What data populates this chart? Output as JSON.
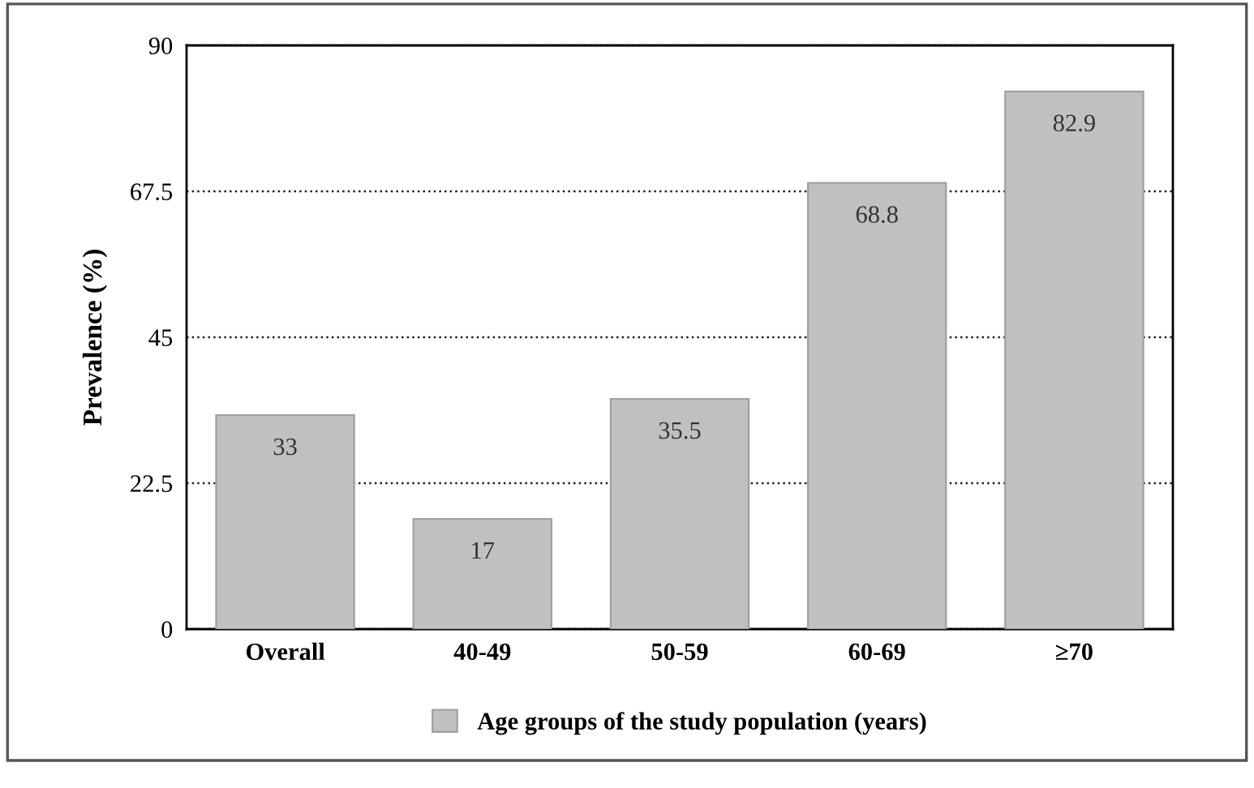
{
  "chart_data": {
    "type": "bar",
    "ylabel": "Prevalence (%)",
    "categories": [
      "Overall",
      "40-49",
      "50-59",
      "60-69",
      "≥70"
    ],
    "series": [
      {
        "name": "Age groups of the study population (years)",
        "color": "#c0c0c0",
        "values": [
          33,
          17,
          35.5,
          68.8,
          82.9
        ]
      }
    ],
    "ylim": [
      0,
      90
    ],
    "yticks": [
      0,
      22.5,
      45,
      67.5,
      90
    ],
    "grid": "y",
    "legend": "bottom",
    "data_labels": true
  }
}
